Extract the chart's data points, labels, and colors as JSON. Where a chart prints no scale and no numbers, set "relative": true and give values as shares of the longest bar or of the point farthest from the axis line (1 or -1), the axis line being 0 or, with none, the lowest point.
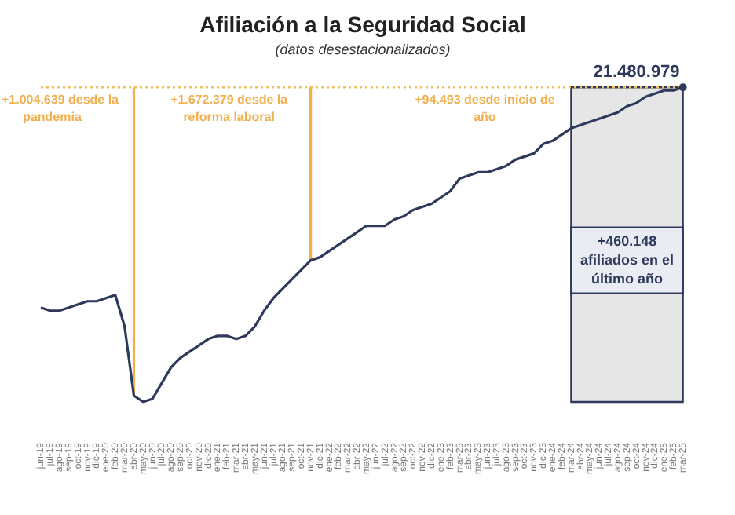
{
  "chart_data": {
    "type": "line",
    "title": "Afiliación a la Seguridad Social",
    "subtitle": "(datos desestacionalizados)",
    "relative": true,
    "categories": [
      "jun-19",
      "jul-19",
      "ago-19",
      "sep-19",
      "oct-19",
      "nov-19",
      "dic-19",
      "ene-20",
      "feb-20",
      "mar-20",
      "abr-20",
      "may-20",
      "jun-20",
      "jul-20",
      "ago-20",
      "sep-20",
      "oct-20",
      "nov-20",
      "dic-20",
      "ene-21",
      "feb-21",
      "mar-21",
      "abr-21",
      "may-21",
      "jun-21",
      "jul-21",
      "ago-21",
      "sep-21",
      "oct-21",
      "nov-21",
      "dic-21",
      "ene-22",
      "feb-22",
      "mar-22",
      "abr-22",
      "may-22",
      "jun-22",
      "jul-22",
      "ago-22",
      "sep-22",
      "oct-22",
      "nov-22",
      "dic-22",
      "ene-23",
      "feb-23",
      "mar-23",
      "abr-23",
      "may-23",
      "jun-23",
      "jul-23",
      "ago-23",
      "sep-23",
      "oct-23",
      "nov-23",
      "dic-23",
      "ene-24",
      "feb-24",
      "mar-24",
      "abr-24",
      "may-24",
      "jun-24",
      "jul-24",
      "ago-24",
      "sep-24",
      "oct-24",
      "nov-24",
      "dic-24",
      "ene-25",
      "feb-25",
      "mar-25"
    ],
    "series": [
      {
        "color": "#2e3a5c",
        "values": [
          0.3,
          0.29,
          0.29,
          0.3,
          0.31,
          0.32,
          0.32,
          0.33,
          0.34,
          0.24,
          0.02,
          0,
          0.01,
          0.06,
          0.11,
          0.14,
          0.16,
          0.18,
          0.2,
          0.21,
          0.21,
          0.2,
          0.21,
          0.24,
          0.29,
          0.33,
          0.36,
          0.39,
          0.42,
          0.45,
          0.46,
          0.48,
          0.5,
          0.52,
          0.54,
          0.56,
          0.56,
          0.56,
          0.58,
          0.59,
          0.61,
          0.62,
          0.63,
          0.65,
          0.67,
          0.71,
          0.72,
          0.73,
          0.73,
          0.74,
          0.75,
          0.77,
          0.78,
          0.79,
          0.82,
          0.83,
          0.85,
          0.87,
          0.88,
          0.89,
          0.9,
          0.91,
          0.92,
          0.94,
          0.95,
          0.97,
          0.98,
          0.99,
          0.99,
          1
        ]
      }
    ],
    "marker": "none",
    "grid": false,
    "legend": false,
    "tick_labels": "x",
    "ref_lines": [
      {
        "axis": "x",
        "value": "abr-20",
        "label": "+1.004.639 desde la pandemia",
        "color": "#f0b050",
        "line_style": "solid"
      },
      {
        "axis": "x",
        "value": "nov-21",
        "label": "+1.672.379 desde la reforma laboral",
        "color": "#f0b050",
        "line_style": "solid"
      },
      {
        "axis": "y",
        "value": 1,
        "color": "#f0c060",
        "line_style": "dotted"
      }
    ],
    "bands": [
      {
        "axis": "x",
        "from": "mar-24",
        "to": "mar-25",
        "label": "+460.148 afiliados en el último año",
        "color": "#e6e6e6"
      }
    ],
    "annotations": [
      {
        "text": "21.480.979",
        "x": "mar-25",
        "y": 1
      },
      "+94.493 desde inicio de año"
    ]
  }
}
